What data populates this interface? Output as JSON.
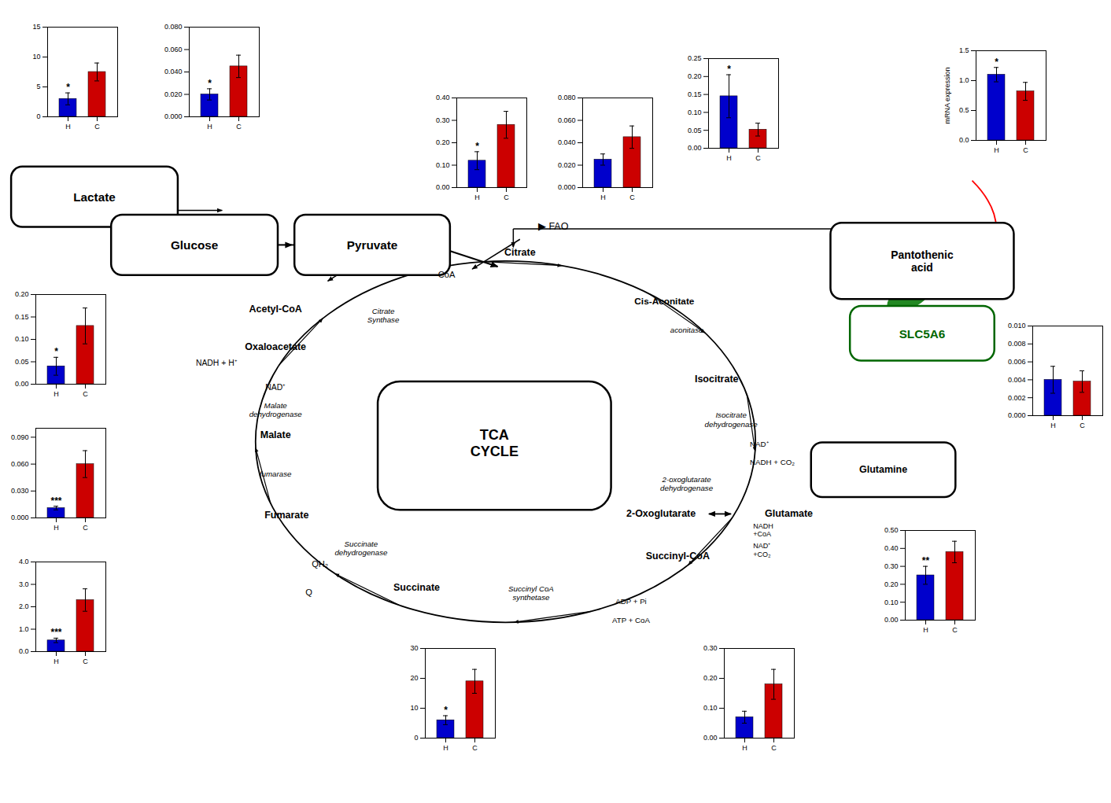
{
  "chart_data": [
    {
      "type": "bar",
      "categories": [
        "H",
        "C"
      ],
      "values": [
        3.0,
        7.5
      ],
      "errors": [
        1.0,
        1.5
      ],
      "colors": [
        "#0000cc",
        "#cc0000"
      ],
      "ylim": [
        0,
        15
      ],
      "yticks": [
        0,
        5,
        10,
        15
      ],
      "annotations": [
        {
          "text": "*",
          "category": "H"
        }
      ]
    },
    {
      "type": "bar",
      "categories": [
        "H",
        "C"
      ],
      "values": [
        0.02,
        0.045
      ],
      "errors": [
        0.005,
        0.01
      ],
      "colors": [
        "#0000cc",
        "#cc0000"
      ],
      "ylim": [
        0,
        0.08
      ],
      "yticks": [
        {
          "value": 0,
          "label": "0.000"
        },
        {
          "value": 0.02,
          "label": "0.020"
        },
        {
          "value": 0.04,
          "label": "0.040"
        },
        {
          "value": 0.06,
          "label": "0.060"
        },
        {
          "value": 0.08,
          "label": "0.080"
        }
      ],
      "annotations": [
        {
          "text": "*",
          "category": "H"
        }
      ]
    },
    {
      "type": "bar",
      "categories": [
        "H",
        "C"
      ],
      "values": [
        0.12,
        0.28
      ],
      "errors": [
        0.04,
        0.06
      ],
      "colors": [
        "#0000cc",
        "#cc0000"
      ],
      "ylim": [
        0,
        0.4
      ],
      "yticks": [
        {
          "value": 0,
          "label": "0.00"
        },
        {
          "value": 0.1,
          "label": "0.10"
        },
        {
          "value": 0.2,
          "label": "0.20"
        },
        {
          "value": 0.3,
          "label": "0.30"
        },
        {
          "value": 0.4,
          "label": "0.40"
        }
      ],
      "annotations": [
        {
          "text": "*",
          "category": "H"
        }
      ]
    },
    {
      "type": "bar",
      "categories": [
        "H",
        "C"
      ],
      "values": [
        0.04,
        0.13
      ],
      "errors": [
        0.02,
        0.04
      ],
      "colors": [
        "#0000cc",
        "#cc0000"
      ],
      "ylim": [
        0,
        0.2
      ],
      "yticks": [
        {
          "value": 0,
          "label": "0.00"
        },
        {
          "value": 0.05,
          "label": "0.05"
        },
        {
          "value": 0.1,
          "label": "0.10"
        },
        {
          "value": 0.15,
          "label": "0.15"
        },
        {
          "value": 0.2,
          "label": "0.20"
        }
      ],
      "annotations": [
        {
          "text": "*",
          "category": "H"
        }
      ]
    },
    {
      "type": "bar",
      "categories": [
        "H",
        "C"
      ],
      "values": [
        0.025,
        0.045
      ],
      "errors": [
        0.005,
        0.01
      ],
      "colors": [
        "#0000cc",
        "#cc0000"
      ],
      "ylim": [
        0,
        0.08
      ],
      "yticks": [
        {
          "value": 0,
          "label": "0.000"
        },
        {
          "value": 0.02,
          "label": "0.020"
        },
        {
          "value": 0.04,
          "label": "0.040"
        },
        {
          "value": 0.06,
          "label": "0.060"
        },
        {
          "value": 0.08,
          "label": "0.080"
        }
      ]
    },
    {
      "type": "bar",
      "categories": [
        "H",
        "C"
      ],
      "values": [
        0.004,
        0.0038
      ],
      "errors": [
        0.0015,
        0.0012
      ],
      "colors": [
        "#0000cc",
        "#cc0000"
      ],
      "ylim": [
        0,
        0.01
      ],
      "yticks": [
        {
          "value": 0,
          "label": "0.000"
        },
        {
          "value": 0.002,
          "label": "0.002"
        },
        {
          "value": 0.004,
          "label": "0.004"
        },
        {
          "value": 0.006,
          "label": "0.006"
        },
        {
          "value": 0.008,
          "label": "0.008"
        },
        {
          "value": 0.01,
          "label": "0.010"
        }
      ]
    },
    {
      "type": "bar",
      "categories": [
        "H",
        "C"
      ],
      "values": [
        0.011,
        0.06
      ],
      "errors": [
        0.002,
        0.015
      ],
      "colors": [
        "#0000cc",
        "#cc0000"
      ],
      "ylim": [
        0,
        0.1
      ],
      "yticks": [
        {
          "value": 0,
          "label": "0.000"
        },
        {
          "value": 0.03,
          "label": "0.030"
        },
        {
          "value": 0.06,
          "label": "0.060"
        },
        {
          "value": 0.09,
          "label": "0.090"
        }
      ],
      "annotations": [
        {
          "text": "***",
          "category": "H"
        }
      ]
    },
    {
      "type": "bar",
      "categories": [
        "H",
        "C"
      ],
      "values": [
        0.25,
        0.38
      ],
      "errors": [
        0.05,
        0.06
      ],
      "colors": [
        "#0000cc",
        "#cc0000"
      ],
      "ylim": [
        0,
        0.5
      ],
      "yticks": [
        {
          "value": 0,
          "label": "0.00"
        },
        {
          "value": 0.1,
          "label": "0.10"
        },
        {
          "value": 0.2,
          "label": "0.20"
        },
        {
          "value": 0.3,
          "label": "0.30"
        },
        {
          "value": 0.4,
          "label": "0.40"
        },
        {
          "value": 0.5,
          "label": "0.50"
        }
      ],
      "annotations": [
        {
          "text": "**",
          "category": "H"
        }
      ]
    },
    {
      "type": "bar",
      "categories": [
        "H",
        "C"
      ],
      "values": [
        0.5,
        2.3
      ],
      "errors": [
        0.1,
        0.5
      ],
      "colors": [
        "#0000cc",
        "#cc0000"
      ],
      "ylim": [
        0,
        4
      ],
      "yticks": [
        {
          "value": 0,
          "label": "0.0"
        },
        {
          "value": 1,
          "label": "1.0"
        },
        {
          "value": 2,
          "label": "2.0"
        },
        {
          "value": 3,
          "label": "3.0"
        },
        {
          "value": 4,
          "label": "4.0"
        }
      ],
      "annotations": [
        {
          "text": "***",
          "category": "H"
        }
      ]
    },
    {
      "type": "bar",
      "categories": [
        "H",
        "C"
      ],
      "values": [
        0.07,
        0.18
      ],
      "errors": [
        0.02,
        0.05
      ],
      "colors": [
        "#0000cc",
        "#cc0000"
      ],
      "ylim": [
        0,
        0.3
      ],
      "yticks": [
        {
          "value": 0,
          "label": "0.00"
        },
        {
          "value": 0.1,
          "label": "0.10"
        },
        {
          "value": 0.2,
          "label": "0.20"
        },
        {
          "value": 0.3,
          "label": "0.30"
        }
      ]
    },
    {
      "type": "bar",
      "categories": [
        "H",
        "C"
      ],
      "values": [
        6.0,
        19.0
      ],
      "errors": [
        1.5,
        4.0
      ],
      "colors": [
        "#0000cc",
        "#cc0000"
      ],
      "ylim": [
        0,
        30
      ],
      "yticks": [
        0,
        10,
        20,
        30
      ],
      "annotations": [
        {
          "text": "*",
          "category": "H"
        }
      ]
    },
    {
      "type": "bar",
      "categories": [
        "H",
        "C"
      ],
      "values": [
        0.145,
        0.052
      ],
      "errors": [
        0.06,
        0.018
      ],
      "colors": [
        "#0000cc",
        "#cc0000"
      ],
      "ylim": [
        0,
        0.25
      ],
      "yticks": [
        {
          "value": 0,
          "label": "0.00"
        },
        {
          "value": 0.05,
          "label": "0.05"
        },
        {
          "value": 0.1,
          "label": "0.10"
        },
        {
          "value": 0.15,
          "label": "0.15"
        },
        {
          "value": 0.2,
          "label": "0.20"
        },
        {
          "value": 0.25,
          "label": "0.25"
        }
      ],
      "annotations": [
        {
          "text": "*",
          "category": "H"
        }
      ]
    },
    {
      "type": "bar",
      "categories": [
        "H",
        "C"
      ],
      "values": [
        1.1,
        0.82
      ],
      "errors": [
        0.12,
        0.15
      ],
      "colors": [
        "#0000cc",
        "#cc0000"
      ],
      "ylim": [
        0,
        1.5
      ],
      "yticks": [
        {
          "value": 0,
          "label": "0.0"
        },
        {
          "value": 0.5,
          "label": "0.5"
        },
        {
          "value": 1.0,
          "label": "1.0"
        },
        {
          "value": 1.5,
          "label": "1.5"
        }
      ],
      "ylabel": "mRNA expression",
      "annotations": [
        {
          "text": "*",
          "category": "H"
        }
      ]
    },
    {
      "type": "diagram",
      "annotations": [
        "Lactate",
        "Glucose",
        "Pyruvate",
        "Pantothenic\nacid",
        "SLC5A6",
        "Glutamine",
        "TCA\nCYCLE",
        "Citrate",
        "Cis-Aconitate",
        "Isocitrate",
        "Oxaloacetate",
        "Malate",
        "Fumarate",
        "Succinate",
        "QH₂",
        "Q",
        "NADH + H⁺",
        "NAD⁺",
        "2-Oxoglutarate",
        "Glutamate",
        "Succinyl-CoA",
        "Acetyl-CoA",
        "Citrate\nSynthase",
        "aconitase",
        "Isocitrate\ndehydrogenase",
        "Malate\ndehydrogenase",
        "fumarase",
        "Succinate\ndehydrogenase",
        "Succinyl CoA\nsynthetase",
        "2-oxoglutarate\ndehydrogenase",
        "NAD⁺",
        "NADH + CO₂",
        "NADH\n+CoA",
        "NAD⁺\n+CO₂",
        "ADP + Pi",
        "ATP + CoA",
        "▶ FAO",
        "CoA"
      ]
    }
  ]
}
